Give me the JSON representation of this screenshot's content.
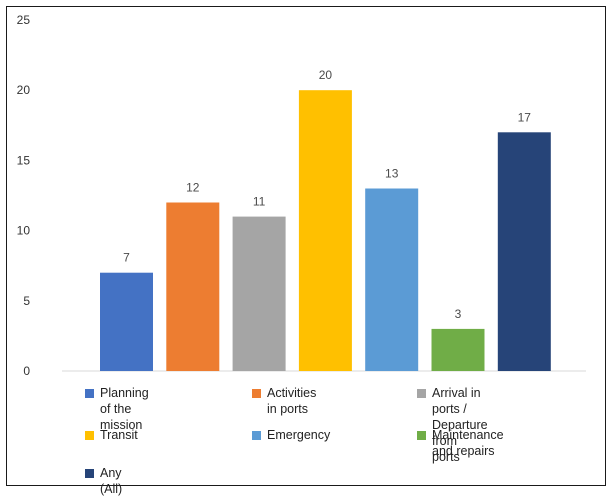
{
  "chart_data": {
    "type": "bar",
    "categories": [
      "Planning of the mission",
      "Activities in ports",
      "Arrival in ports /\nDeparture from ports",
      "Transit",
      "Emergency",
      "Maintenance and repairs",
      "Any (All)"
    ],
    "values": [
      7,
      12,
      11,
      20,
      13,
      3,
      17
    ],
    "colors": [
      "#4472C4",
      "#ED7D31",
      "#A5A5A5",
      "#FFC000",
      "#5B9BD5",
      "#70AD47",
      "#264478"
    ],
    "ylim": [
      0,
      25
    ],
    "yticks": [
      0,
      5,
      10,
      15,
      20,
      25
    ],
    "legend_labels": [
      [
        "Planning of the mission"
      ],
      [
        "Activities in ports"
      ],
      [
        "Arrival in ports /",
        "Departure from ports"
      ],
      [
        "Transit"
      ],
      [
        "Emergency"
      ],
      [
        "Maintenance and repairs"
      ],
      [
        "Any (All)"
      ]
    ],
    "grid": false,
    "legend_position": "bottom",
    "title": "",
    "xlabel": "",
    "ylabel": ""
  }
}
